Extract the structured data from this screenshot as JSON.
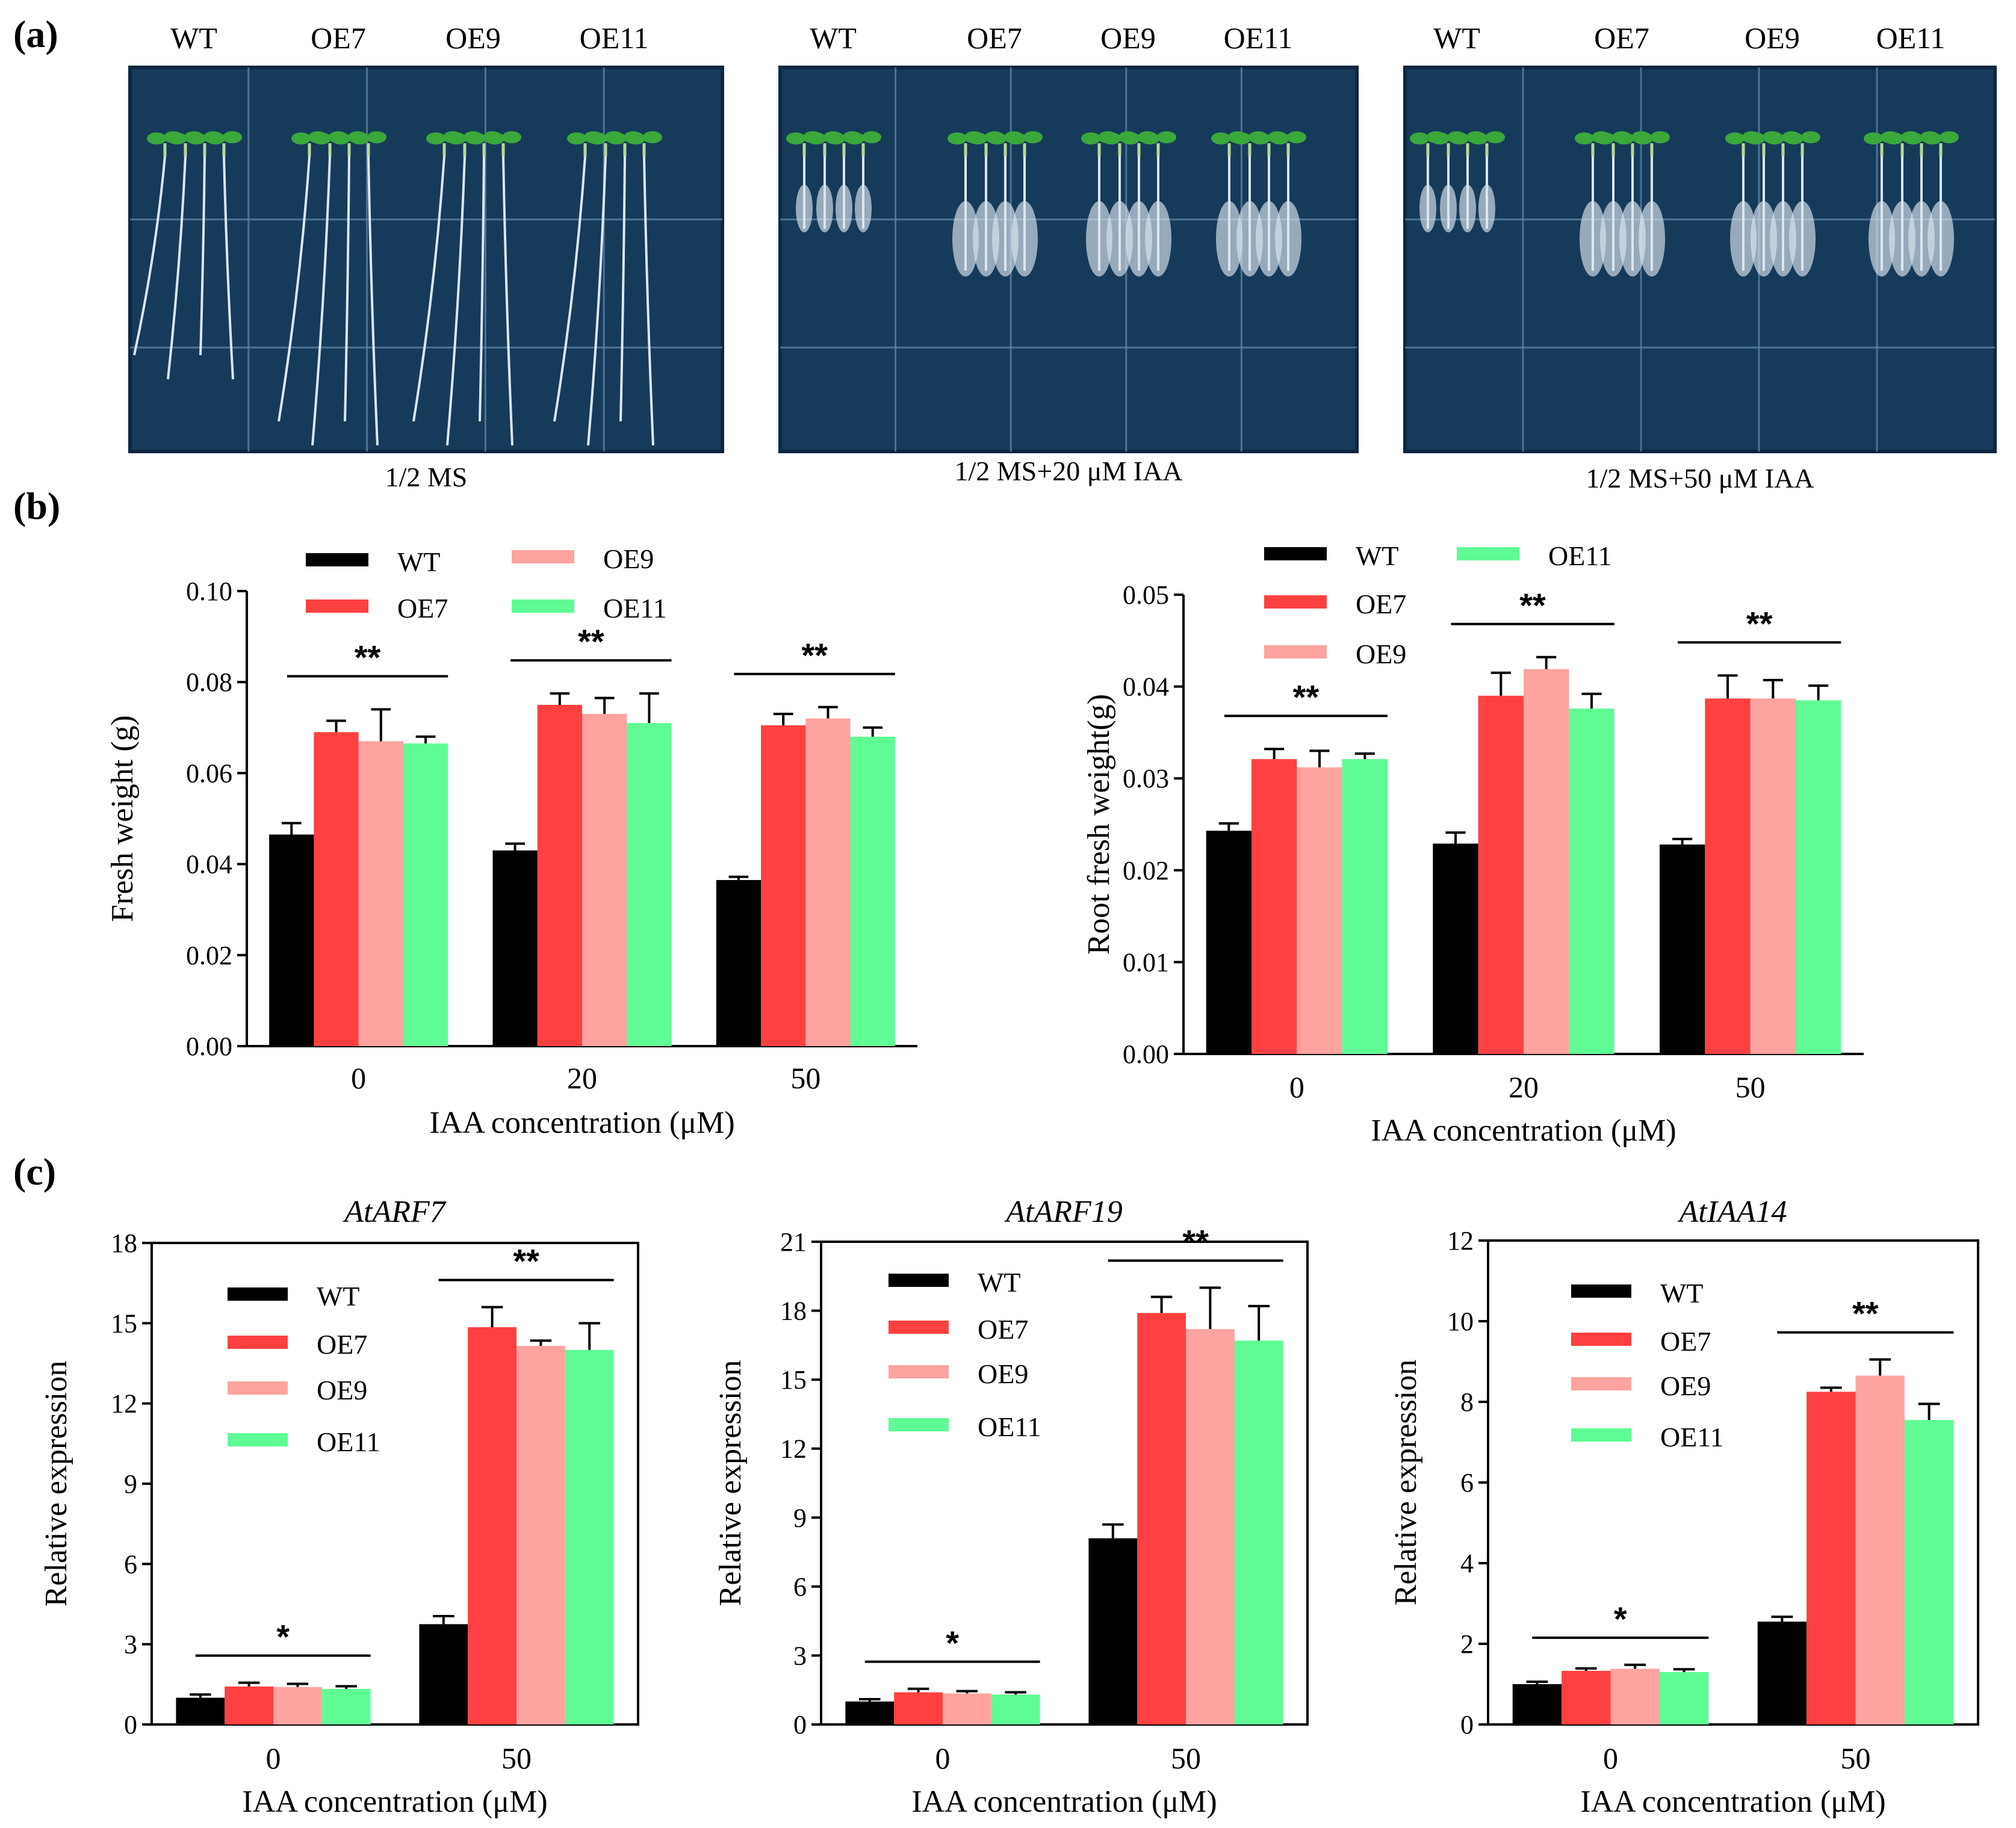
{
  "colors": {
    "WT": "#000000",
    "OE7": "#ff4040",
    "OE9": "#ffa3a0",
    "OE11": "#5ffc95",
    "plate": "#163a5a",
    "plate_dark": "#0e2740",
    "grid": "#5f87a8",
    "seedling_leaf": "#3aa83a",
    "root": "#dbe6ef"
  },
  "panel_a": {
    "letter": "(a)",
    "plates": [
      {
        "lanes": [
          "WT",
          "OE7",
          "OE9",
          "OE11"
        ],
        "caption": "1/2 MS",
        "root_style": "long"
      },
      {
        "lanes": [
          "WT",
          "OE7",
          "OE9",
          "OE11"
        ],
        "caption": "1/2 MS+20 μM IAA",
        "root_style": "bushy"
      },
      {
        "lanes": [
          "WT",
          "OE7",
          "OE9",
          "OE11"
        ],
        "caption": "1/2 MS+50 μM IAA",
        "root_style": "bushy"
      }
    ]
  },
  "panel_b": {
    "letter": "(b)"
  },
  "panel_c": {
    "letter": "(c)"
  },
  "chart_data": [
    {
      "id": "fw",
      "type": "bar",
      "panel": "b",
      "title": "",
      "xlabel": "IAA concentration (μM)",
      "ylabel": "Fresh weight (g)",
      "categories": [
        "0",
        "20",
        "50"
      ],
      "ylim": [
        0,
        0.1
      ],
      "yticks": [
        "0.00",
        "0.02",
        "0.04",
        "0.06",
        "0.08",
        "0.10"
      ],
      "yticks_v": [
        0,
        0.02,
        0.04,
        0.06,
        0.08,
        0.1
      ],
      "legend": [
        "WT",
        "OE7",
        "OE9",
        "OE11"
      ],
      "legend_placement": "top, two columns",
      "series": [
        {
          "name": "WT",
          "values": [
            0.0465,
            0.043,
            0.0365
          ],
          "errors": [
            0.0025,
            0.0015,
            0.0007
          ]
        },
        {
          "name": "OE7",
          "values": [
            0.069,
            0.075,
            0.0705
          ],
          "errors": [
            0.0025,
            0.0025,
            0.0025
          ]
        },
        {
          "name": "OE9",
          "values": [
            0.067,
            0.073,
            0.072
          ],
          "errors": [
            0.007,
            0.0035,
            0.0025
          ]
        },
        {
          "name": "OE11",
          "values": [
            0.0665,
            0.071,
            0.068
          ],
          "errors": [
            0.0015,
            0.0065,
            0.002
          ]
        }
      ],
      "significance": [
        {
          "label": "**",
          "category": "0"
        },
        {
          "label": "**",
          "category": "20"
        },
        {
          "label": "**",
          "category": "50"
        }
      ]
    },
    {
      "id": "rfw",
      "type": "bar",
      "panel": "b",
      "title": "",
      "xlabel": "IAA concentration (μM)",
      "ylabel": "Root fresh weight(g)",
      "categories": [
        "0",
        "20",
        "50"
      ],
      "ylim": [
        0,
        0.05
      ],
      "yticks": [
        "0.00",
        "0.01",
        "0.02",
        "0.03",
        "0.04",
        "0.05"
      ],
      "yticks_v": [
        0,
        0.01,
        0.02,
        0.03,
        0.04,
        0.05
      ],
      "legend": [
        "WT",
        "OE7",
        "OE9",
        "OE11"
      ],
      "legend_placement": "top",
      "series": [
        {
          "name": "WT",
          "values": [
            0.0243,
            0.0229,
            0.0228
          ],
          "errors": [
            0.0008,
            0.0012,
            0.0006
          ]
        },
        {
          "name": "OE7",
          "values": [
            0.0321,
            0.039,
            0.0387
          ],
          "errors": [
            0.0011,
            0.0025,
            0.0025
          ]
        },
        {
          "name": "OE9",
          "values": [
            0.0312,
            0.0419,
            0.0387
          ],
          "errors": [
            0.0018,
            0.0013,
            0.002
          ]
        },
        {
          "name": "OE11",
          "values": [
            0.0321,
            0.0376,
            0.0385
          ],
          "errors": [
            0.0006,
            0.0016,
            0.0016
          ]
        }
      ],
      "significance": [
        {
          "label": "**",
          "category": "0"
        },
        {
          "label": "**",
          "category": "20"
        },
        {
          "label": "**",
          "category": "50"
        }
      ]
    },
    {
      "id": "arf7",
      "type": "bar",
      "panel": "c",
      "title": "AtARF7",
      "xlabel": "IAA concentration (μM)",
      "ylabel": "Relative expression",
      "categories": [
        "0",
        "50"
      ],
      "ylim": [
        0,
        18
      ],
      "yticks": [
        "0",
        "3",
        "6",
        "9",
        "12",
        "15",
        "18"
      ],
      "yticks_v": [
        0,
        3,
        6,
        9,
        12,
        15,
        18
      ],
      "legend": [
        "WT",
        "OE7",
        "OE9",
        "OE11"
      ],
      "legend_placement": "top-left",
      "series": [
        {
          "name": "WT",
          "values": [
            1.0,
            3.75
          ],
          "errors": [
            0.12,
            0.3
          ]
        },
        {
          "name": "OE7",
          "values": [
            1.42,
            14.85
          ],
          "errors": [
            0.14,
            0.75
          ]
        },
        {
          "name": "OE9",
          "values": [
            1.4,
            14.15
          ],
          "errors": [
            0.12,
            0.2
          ]
        },
        {
          "name": "OE11",
          "values": [
            1.33,
            14.0
          ],
          "errors": [
            0.1,
            1.0
          ]
        }
      ],
      "significance": [
        {
          "label": "*",
          "category": "0"
        },
        {
          "label": "**",
          "category": "50"
        }
      ]
    },
    {
      "id": "arf19",
      "type": "bar",
      "panel": "c",
      "title": "AtARF19",
      "xlabel": "IAA concentration (μM)",
      "ylabel": "Relative expression",
      "categories": [
        "0",
        "50"
      ],
      "ylim": [
        0,
        21
      ],
      "yticks": [
        "0",
        "3",
        "6",
        "9",
        "12",
        "15",
        "18",
        "21"
      ],
      "yticks_v": [
        0,
        3,
        6,
        9,
        12,
        15,
        18,
        21
      ],
      "legend": [
        "WT",
        "OE7",
        "OE9",
        "OE11"
      ],
      "legend_placement": "top-left",
      "series": [
        {
          "name": "WT",
          "values": [
            1.0,
            8.1
          ],
          "errors": [
            0.1,
            0.6
          ]
        },
        {
          "name": "OE7",
          "values": [
            1.4,
            17.9
          ],
          "errors": [
            0.15,
            0.7
          ]
        },
        {
          "name": "OE9",
          "values": [
            1.35,
            17.2
          ],
          "errors": [
            0.1,
            1.8
          ]
        },
        {
          "name": "OE11",
          "values": [
            1.3,
            16.7
          ],
          "errors": [
            0.1,
            1.5
          ]
        }
      ],
      "significance": [
        {
          "label": "*",
          "category": "0"
        },
        {
          "label": "**",
          "category": "50"
        }
      ]
    },
    {
      "id": "iaa14",
      "type": "bar",
      "panel": "c",
      "title": "AtIAA14",
      "xlabel": "IAA concentration (μM)",
      "ylabel": "Relative expression",
      "categories": [
        "0",
        "50"
      ],
      "ylim": [
        0,
        12
      ],
      "yticks": [
        "0",
        "2",
        "4",
        "6",
        "8",
        "10",
        "12"
      ],
      "yticks_v": [
        0,
        2,
        4,
        6,
        8,
        10,
        12
      ],
      "legend": [
        "WT",
        "OE7",
        "OE9",
        "OE11"
      ],
      "legend_placement": "top-left",
      "series": [
        {
          "name": "WT",
          "values": [
            1.0,
            2.55
          ],
          "errors": [
            0.06,
            0.12
          ]
        },
        {
          "name": "OE7",
          "values": [
            1.33,
            8.25
          ],
          "errors": [
            0.06,
            0.1
          ]
        },
        {
          "name": "OE9",
          "values": [
            1.38,
            8.65
          ],
          "errors": [
            0.1,
            0.4
          ]
        },
        {
          "name": "OE11",
          "values": [
            1.3,
            7.55
          ],
          "errors": [
            0.07,
            0.4
          ]
        }
      ],
      "significance": [
        {
          "label": "*",
          "category": "0"
        },
        {
          "label": "**",
          "category": "50"
        }
      ]
    }
  ]
}
